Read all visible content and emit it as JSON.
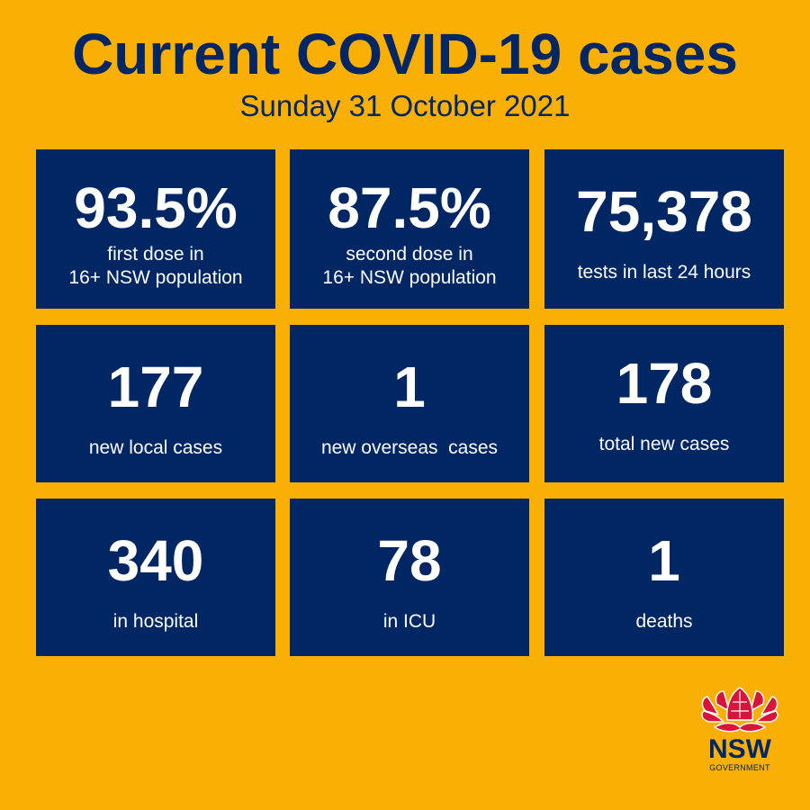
{
  "header": {
    "title": "Current COVID-19 cases",
    "date": "Sunday 31 October 2021"
  },
  "tiles": [
    {
      "value": "93.5%",
      "label_line1": "first dose in",
      "label_line2": "16+ NSW population"
    },
    {
      "value": "87.5%",
      "label_line1": "second dose in",
      "label_line2": "16+ NSW population"
    },
    {
      "value": "75,378",
      "label": "tests in last 24 hours"
    },
    {
      "value": "177",
      "label": "new local cases"
    },
    {
      "value": "1",
      "label": "new overseas  cases"
    },
    {
      "value": "178",
      "label": "total new cases"
    },
    {
      "value": "340",
      "label": "in hospital"
    },
    {
      "value": "78",
      "label": "in ICU"
    },
    {
      "value": "1",
      "label": "deaths"
    }
  ],
  "logo": {
    "name": "NSW",
    "sub": "GOVERNMENT",
    "icon": "waratah-icon"
  },
  "colors": {
    "background": "#FAAF05",
    "tile": "#002664",
    "waratah": "#D7153A"
  }
}
